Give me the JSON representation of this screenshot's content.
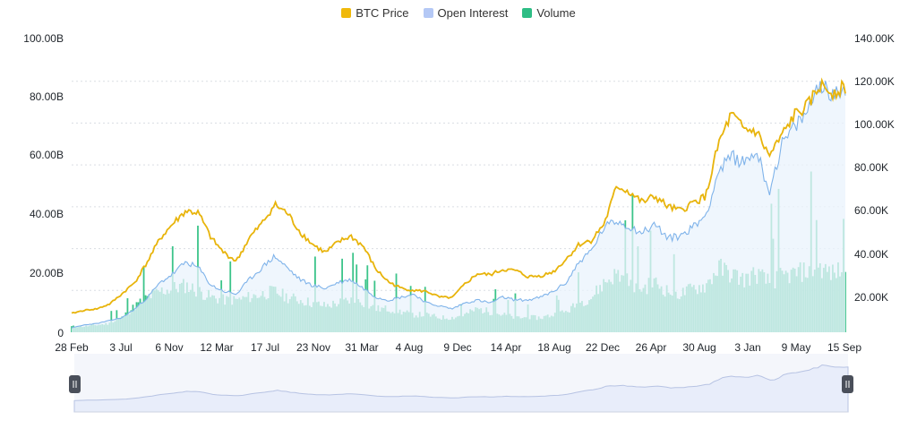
{
  "legend": [
    {
      "name": "BTC Price",
      "color": "#F0B90B"
    },
    {
      "name": "Open Interest",
      "color": "#B4C8F5"
    },
    {
      "name": "Volume",
      "color": "#2EBD85"
    }
  ],
  "colors": {
    "price": "#E8B40B",
    "oi_line": "#7FB3EA",
    "oi_fill": "#EAF3FC",
    "volume": "#3CC48A",
    "grid": "#DADDE3",
    "axis_text": "#1E2329",
    "navigator_fill": "#E8EDFA",
    "navigator_line": "#B7C3E3",
    "navigator_handle": "#4A4F5A"
  },
  "chart_data": {
    "type": "line",
    "title": "",
    "x_tick_labels": [
      "28 Feb",
      "3 Jul",
      "6 Nov",
      "12 Mar",
      "17 Jul",
      "23 Nov",
      "31 Mar",
      "4 Aug",
      "9 Dec",
      "14 Apr",
      "18 Aug",
      "22 Dec",
      "26 Apr",
      "30 Aug",
      "3 Jan",
      "9 May",
      "15 Sep"
    ],
    "y_left": {
      "label": "",
      "ticks": [
        "0",
        "20.00B",
        "40.00B",
        "60.00B",
        "80.00B",
        "100.00B"
      ],
      "range": [
        0,
        100000000000
      ]
    },
    "y_right": {
      "label": "",
      "ticks": [
        "20.00K",
        "40.00K",
        "60.00K",
        "80.00K",
        "100.00K",
        "120.00K",
        "140.00K"
      ],
      "range": [
        0,
        140000
      ]
    },
    "grid": true,
    "legend_position": "top-center",
    "series": [
      {
        "name": "BTC Price",
        "axis": "right",
        "values": [
          9000,
          10500,
          11200,
          13500,
          18500,
          24000,
          34000,
          45000,
          52000,
          58000,
          57000,
          45000,
          38000,
          34000,
          45000,
          52000,
          61000,
          57000,
          48000,
          42000,
          38000,
          43000,
          46000,
          41000,
          30000,
          24000,
          21000,
          20000,
          19500,
          16800,
          16500,
          23000,
          28000,
          27500,
          30000,
          29500,
          26500,
          27000,
          29000,
          35000,
          42000,
          44000,
          52000,
          70000,
          67000,
          62000,
          65000,
          60000,
          58000,
          62000,
          65000,
          90000,
          104000,
          97000,
          96000,
          84000,
          94000,
          104000,
          108000,
          118000,
          115000,
          117000
        ]
      },
      {
        "name": "Open Interest",
        "axis": "left",
        "values": [
          1.5,
          2.5,
          3,
          4,
          5,
          8,
          12,
          17,
          20,
          24,
          22,
          16,
          14,
          13,
          18,
          22,
          26,
          22,
          18,
          16,
          15,
          17,
          18,
          15,
          12,
          11,
          12,
          13,
          10,
          9,
          8,
          10,
          11,
          10,
          12,
          11,
          11,
          12,
          14,
          17,
          24,
          28,
          36,
          38,
          36,
          34,
          37,
          32,
          33,
          36,
          40,
          55,
          60,
          58,
          62,
          48,
          64,
          70,
          75,
          86,
          80,
          84
        ]
      },
      {
        "name": "Volume",
        "axis": "left",
        "values": [
          2,
          2,
          2.5,
          3,
          5,
          9,
          12,
          14,
          15,
          16,
          14,
          12,
          11,
          11,
          12,
          13,
          14,
          12,
          11,
          10,
          9,
          10,
          11,
          10,
          8,
          8,
          7,
          6,
          6,
          5,
          5,
          6,
          8,
          7,
          6,
          5,
          5,
          5,
          6,
          7,
          10,
          12,
          17,
          20,
          17,
          15,
          17,
          14,
          13,
          15,
          16,
          22,
          20,
          18,
          20,
          17,
          19,
          20,
          21,
          22,
          20,
          22
        ]
      }
    ]
  }
}
